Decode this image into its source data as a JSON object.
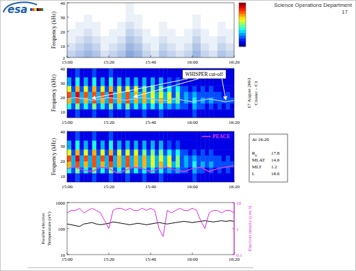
{
  "slide": {
    "logo": "esa",
    "department": "Science Operations Department",
    "page_number": 17
  },
  "chart_data": [
    {
      "type": "heatmap",
      "y_label": "Frequency (kHz)",
      "x_bins": [
        0,
        4,
        8,
        12,
        16,
        20,
        24,
        28,
        32,
        36,
        40,
        44,
        48,
        52,
        56,
        60,
        64,
        68,
        72,
        76,
        80
      ],
      "y_bins": [
        2,
        7,
        12,
        17,
        22,
        27,
        32,
        40
      ],
      "cells": [
        [
          3,
          4,
          5,
          4,
          2,
          3,
          4,
          6,
          5,
          3,
          2,
          4,
          3,
          2,
          3,
          5,
          3,
          2,
          4,
          3
        ],
        [
          2,
          3,
          4,
          3,
          1,
          2,
          3,
          5,
          4,
          2,
          1,
          3,
          2,
          1,
          2,
          4,
          2,
          1,
          3,
          2
        ],
        [
          1,
          2,
          3,
          2,
          1,
          1,
          2,
          4,
          3,
          1,
          1,
          2,
          1,
          1,
          1,
          3,
          1,
          1,
          2,
          1
        ],
        [
          1,
          1,
          2,
          1,
          0,
          1,
          1,
          3,
          2,
          1,
          0,
          1,
          1,
          0,
          1,
          2,
          1,
          0,
          1,
          1
        ],
        [
          0,
          1,
          1,
          1,
          0,
          0,
          1,
          2,
          1,
          0,
          0,
          1,
          0,
          0,
          0,
          1,
          0,
          0,
          1,
          0
        ],
        [
          0,
          0,
          1,
          0,
          0,
          0,
          0,
          1,
          1,
          0,
          0,
          0,
          0,
          0,
          0,
          1,
          0,
          0,
          0,
          0
        ],
        [
          0,
          0,
          0,
          0,
          0,
          0,
          0,
          1,
          0,
          0,
          0,
          0,
          0,
          0,
          0,
          0,
          0,
          0,
          0,
          0
        ]
      ],
      "zlim": [
        0,
        10
      ],
      "color": "#3a6fc4",
      "xlim": [
        0,
        80
      ],
      "xticks": [
        {
          "value": 0,
          "label": "15:00"
        },
        {
          "value": 20,
          "label": "15:20"
        },
        {
          "value": 40,
          "label": "15:40"
        },
        {
          "value": 60,
          "label": "16:00"
        },
        {
          "value": 80,
          "label": "16:20"
        }
      ],
      "ylim": [
        2,
        40
      ],
      "yticks": [
        2,
        10,
        20,
        30,
        40
      ]
    },
    {
      "type": "heatmap",
      "y_label": "Frequency (kHz)",
      "x_bins": [
        0,
        2,
        4,
        6,
        8,
        10,
        12,
        14,
        16,
        18,
        20,
        22,
        24,
        26,
        28,
        30,
        32,
        34,
        36,
        38,
        40,
        42,
        44,
        46,
        48,
        50,
        52,
        54,
        56,
        58,
        60,
        62,
        64,
        66,
        68,
        70,
        72,
        74,
        76,
        78,
        80
      ],
      "y_bins": [
        6,
        12,
        16,
        20,
        24,
        28,
        34,
        40
      ],
      "cells": [
        [
          1,
          1,
          2,
          1,
          1,
          1,
          2,
          1,
          1,
          1,
          2,
          1,
          1,
          1,
          2,
          1,
          1,
          1,
          2,
          1,
          1,
          1,
          2,
          1,
          1,
          1,
          1,
          1,
          1,
          1,
          2,
          1,
          1,
          1,
          1,
          1,
          1,
          1,
          1,
          1
        ],
        [
          4,
          2,
          5,
          2,
          4,
          2,
          5,
          2,
          4,
          2,
          5,
          2,
          4,
          2,
          5,
          2,
          4,
          2,
          4,
          2,
          4,
          2,
          4,
          2,
          3,
          2,
          3,
          2,
          2,
          1,
          3,
          2,
          2,
          1,
          2,
          1,
          2,
          1,
          2,
          1
        ],
        [
          7,
          3,
          8,
          3,
          7,
          3,
          8,
          3,
          7,
          3,
          8,
          3,
          7,
          3,
          8,
          3,
          7,
          3,
          7,
          3,
          6,
          3,
          7,
          3,
          6,
          3,
          5,
          2,
          3,
          2,
          4,
          2,
          3,
          2,
          3,
          2,
          2,
          2,
          2,
          2
        ],
        [
          8,
          3,
          9,
          3,
          8,
          3,
          8,
          3,
          8,
          3,
          9,
          3,
          7,
          3,
          8,
          3,
          7,
          3,
          7,
          3,
          6,
          3,
          6,
          3,
          6,
          2,
          5,
          2,
          3,
          2,
          3,
          2,
          2,
          2,
          2,
          2,
          2,
          1,
          2,
          1
        ],
        [
          6,
          2,
          7,
          2,
          6,
          2,
          7,
          2,
          6,
          2,
          7,
          2,
          6,
          2,
          6,
          2,
          6,
          2,
          5,
          2,
          5,
          2,
          5,
          2,
          4,
          2,
          4,
          2,
          2,
          1,
          2,
          1,
          2,
          1,
          2,
          1,
          1,
          1,
          1,
          1
        ],
        [
          3,
          1,
          4,
          1,
          3,
          1,
          4,
          1,
          3,
          1,
          4,
          1,
          3,
          1,
          3,
          1,
          3,
          1,
          3,
          1,
          3,
          1,
          3,
          1,
          2,
          1,
          2,
          1,
          1,
          1,
          1,
          1,
          1,
          1,
          1,
          1,
          1,
          1,
          1,
          1
        ],
        [
          1,
          1,
          2,
          1,
          1,
          1,
          2,
          1,
          1,
          1,
          2,
          1,
          1,
          1,
          1,
          1,
          1,
          1,
          1,
          1,
          1,
          1,
          1,
          1,
          1,
          1,
          1,
          1,
          1,
          1,
          1,
          1,
          1,
          1,
          1,
          1,
          1,
          1,
          1,
          1
        ]
      ],
      "zlim": [
        0,
        10
      ],
      "xlim": [
        0,
        80
      ],
      "xticks": [
        {
          "value": 0,
          "label": "15:00"
        },
        {
          "value": 20,
          "label": "15:20"
        },
        {
          "value": 40,
          "label": "15:40"
        },
        {
          "value": 60,
          "label": "16:00"
        },
        {
          "value": 80,
          "label": "16:20"
        }
      ],
      "ylim": [
        6,
        40
      ],
      "yticks": [
        10,
        20,
        30,
        40
      ],
      "series": [
        {
          "name": "WHISPER cut-off",
          "color": "#a8c4f0",
          "x": [
            0,
            4,
            8,
            12,
            16,
            20,
            24,
            28,
            32,
            36,
            40,
            44,
            48,
            52,
            56,
            60,
            64,
            68,
            72,
            76,
            80
          ],
          "values": [
            19,
            20,
            19,
            18,
            19,
            20,
            19,
            18,
            19,
            20,
            19,
            18,
            18,
            19,
            18,
            17,
            18,
            19,
            18,
            17,
            18
          ]
        }
      ],
      "annotations": [
        "17 August 2003",
        "Cluster – C1"
      ]
    },
    {
      "type": "heatmap",
      "x_bins": [
        0,
        2,
        4,
        6,
        8,
        10,
        12,
        14,
        16,
        18,
        20,
        22,
        24,
        26,
        28,
        30,
        32,
        34,
        36,
        38,
        40,
        42,
        44,
        46,
        48,
        50,
        52,
        54,
        56,
        58,
        60,
        62,
        64,
        66,
        68,
        70,
        72,
        74,
        76,
        78,
        80
      ],
      "y_bins": [
        6,
        12,
        16,
        20,
        24,
        28,
        34,
        40
      ],
      "cells": [
        [
          1,
          1,
          2,
          1,
          1,
          1,
          2,
          1,
          1,
          1,
          2,
          1,
          1,
          1,
          2,
          1,
          1,
          1,
          2,
          1,
          1,
          1,
          2,
          1,
          1,
          1,
          1,
          1,
          1,
          1,
          2,
          1,
          1,
          1,
          1,
          1,
          1,
          1,
          1,
          1
        ],
        [
          4,
          2,
          5,
          2,
          4,
          2,
          5,
          2,
          4,
          2,
          5,
          2,
          4,
          2,
          5,
          2,
          4,
          2,
          4,
          2,
          4,
          2,
          4,
          2,
          3,
          2,
          3,
          2,
          2,
          1,
          3,
          2,
          2,
          1,
          2,
          1,
          2,
          1,
          2,
          1
        ],
        [
          7,
          3,
          8,
          3,
          7,
          3,
          8,
          3,
          7,
          3,
          8,
          3,
          7,
          3,
          8,
          3,
          7,
          3,
          7,
          3,
          6,
          3,
          7,
          3,
          6,
          3,
          5,
          2,
          3,
          2,
          4,
          2,
          3,
          2,
          3,
          2,
          2,
          2,
          2,
          2
        ],
        [
          8,
          3,
          9,
          3,
          8,
          3,
          8,
          3,
          8,
          3,
          9,
          3,
          7,
          3,
          8,
          3,
          7,
          3,
          7,
          3,
          6,
          3,
          6,
          3,
          6,
          2,
          5,
          2,
          3,
          2,
          3,
          2,
          2,
          2,
          2,
          2,
          2,
          1,
          2,
          1
        ],
        [
          6,
          2,
          7,
          2,
          6,
          2,
          7,
          2,
          6,
          2,
          7,
          2,
          6,
          2,
          6,
          2,
          6,
          2,
          5,
          2,
          5,
          2,
          5,
          2,
          4,
          2,
          4,
          2,
          2,
          1,
          2,
          1,
          2,
          1,
          2,
          1,
          1,
          1,
          1,
          1
        ],
        [
          3,
          1,
          4,
          1,
          3,
          1,
          4,
          1,
          3,
          1,
          4,
          1,
          3,
          1,
          3,
          1,
          3,
          1,
          3,
          1,
          3,
          1,
          3,
          1,
          2,
          1,
          2,
          1,
          1,
          1,
          1,
          1,
          1,
          1,
          1,
          1,
          1,
          1,
          1,
          1
        ],
        [
          1,
          1,
          2,
          1,
          1,
          1,
          2,
          1,
          1,
          1,
          2,
          1,
          1,
          1,
          1,
          1,
          1,
          1,
          1,
          1,
          1,
          1,
          1,
          1,
          1,
          1,
          1,
          1,
          1,
          1,
          1,
          1,
          1,
          1,
          1,
          1,
          1,
          1,
          1,
          1
        ]
      ],
      "zlim": [
        0,
        10
      ],
      "xlim": [
        0,
        80
      ],
      "xticks": [
        {
          "value": 0,
          "label": "15:00"
        },
        {
          "value": 20,
          "label": "15:20"
        },
        {
          "value": 40,
          "label": "15:40"
        },
        {
          "value": 60,
          "label": "16:00"
        },
        {
          "value": 80,
          "label": "16:20"
        }
      ],
      "y_label": "Frequency (kHz)",
      "ylim": [
        6,
        40
      ],
      "yticks": [
        10,
        20,
        30,
        40
      ],
      "series": [
        {
          "name": "PEACE",
          "color": "#e040e0",
          "x": [
            0,
            4,
            8,
            12,
            16,
            20,
            24,
            28,
            32,
            36,
            40,
            44,
            48,
            52,
            56,
            60,
            64,
            68,
            72,
            76,
            80
          ],
          "values": [
            15,
            16,
            14,
            13,
            16,
            15,
            12,
            14,
            16,
            15,
            13,
            15,
            16,
            14,
            13,
            15,
            16,
            13,
            15,
            16,
            17
          ]
        }
      ],
      "legend": "upper right",
      "info": {
        "title": "At 16:20",
        "rows": [
          {
            "label": "R",
            "sub": "E",
            "value": 17.8
          },
          {
            "label": "MLAT",
            "value": 14.6
          },
          {
            "label": "MLT",
            "value": 1.2
          },
          {
            "label": "L",
            "value": 18.6
          }
        ]
      }
    },
    {
      "type": "line",
      "x": [
        0,
        2,
        4,
        6,
        8,
        10,
        12,
        14,
        16,
        18,
        20,
        22,
        24,
        26,
        28,
        30,
        32,
        34,
        36,
        38,
        40,
        42,
        44,
        46,
        48,
        50,
        52,
        54,
        56,
        58,
        60,
        62,
        64,
        66,
        68,
        70,
        72,
        74,
        76,
        78,
        80
      ],
      "xlim": [
        0,
        80
      ],
      "xticks": [
        {
          "value": 0,
          "label": "15:00"
        },
        {
          "value": 20,
          "label": "15:20"
        },
        {
          "value": 40,
          "label": "15:40"
        },
        {
          "value": 60,
          "label": "16:00"
        },
        {
          "value": 80,
          "label": "16:20"
        }
      ],
      "y_label": "Parallel electron Temperature (eV)",
      "ylim": [
        10,
        1000
      ],
      "yticks": [
        10,
        100,
        1000
      ],
      "y2_label": "Electron density (cm-3)",
      "y2lim": [
        0.1,
        10
      ],
      "y2ticks": [
        0.1,
        1,
        10
      ],
      "log": "y",
      "series": [
        {
          "color": "#000000",
          "values": [
            150,
            140,
            130,
            120,
            150,
            160,
            170,
            150,
            140,
            150,
            160,
            180,
            170,
            160,
            150,
            140,
            150,
            160,
            150,
            140,
            150,
            160,
            170,
            160,
            150,
            160,
            170,
            180,
            190,
            180,
            170,
            180,
            190,
            200,
            190,
            180,
            190,
            200,
            190,
            200,
            190
          ]
        },
        {
          "color": "#e020e0",
          "axis": "y2",
          "values": [
            4,
            5,
            5,
            6,
            4,
            5,
            6,
            5,
            4,
            2,
            1,
            5,
            6,
            6,
            5,
            6,
            5,
            5,
            6,
            5,
            6,
            5,
            1,
            0.5,
            5,
            4,
            5,
            6,
            5,
            5,
            6,
            5,
            2,
            1,
            4,
            5,
            5,
            4,
            5,
            5,
            4
          ]
        }
      ]
    }
  ]
}
